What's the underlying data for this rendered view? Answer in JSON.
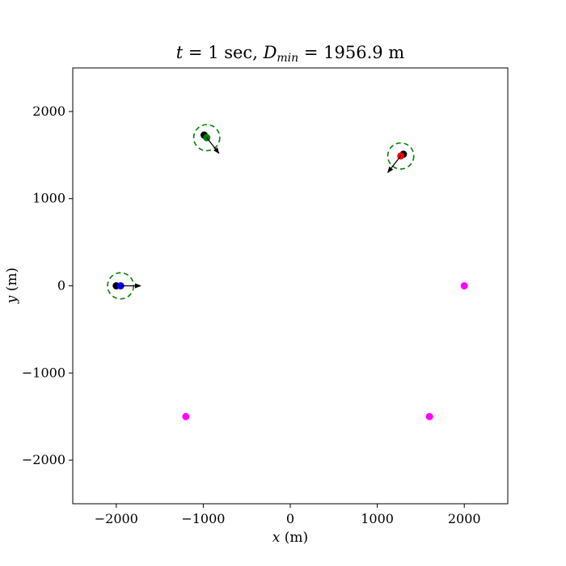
{
  "chart_data": {
    "type": "scatter",
    "title": {
      "t_symbol": "t",
      "eq1": " = 1 sec, ",
      "d_symbol": "D",
      "d_sub": "min",
      "eq2": " = 1956.9 m"
    },
    "xlabel": {
      "symbol": "x",
      "unit": " (m)"
    },
    "ylabel": {
      "symbol": "y",
      "unit": " (m)"
    },
    "xlim": [
      -2500,
      2500
    ],
    "ylim": [
      -2500,
      2500
    ],
    "xticks": [
      -2000,
      -1000,
      0,
      1000,
      2000
    ],
    "yticks": [
      -2000,
      -1000,
      0,
      1000,
      2000
    ],
    "xtick_labels": [
      "−2000",
      "−1000",
      "0",
      "1000",
      "2000"
    ],
    "ytick_labels": [
      "−2000",
      "−1000",
      "0",
      "1000",
      "2000"
    ],
    "grid": false,
    "targets": {
      "color": "#ff00ff",
      "points": [
        [
          2000,
          0
        ],
        [
          -1200,
          -1500
        ],
        [
          1600,
          -1500
        ]
      ]
    },
    "agents": [
      {
        "color": "#0000ff",
        "prev": [
          -2000,
          0
        ],
        "pos": [
          -1950,
          0
        ],
        "arrow_to": [
          -1720,
          0
        ],
        "safety_radius": 150,
        "ring_color": "#008000"
      },
      {
        "color": "#008000",
        "prev": [
          -990,
          1730
        ],
        "pos": [
          -960,
          1700
        ],
        "arrow_to": [
          -820,
          1520
        ],
        "safety_radius": 150,
        "ring_color": "#008000"
      },
      {
        "color": "#ff0000",
        "prev": [
          1300,
          1510
        ],
        "pos": [
          1270,
          1490
        ],
        "arrow_to": [
          1120,
          1300
        ],
        "safety_radius": 150,
        "ring_color": "#008000"
      }
    ]
  }
}
